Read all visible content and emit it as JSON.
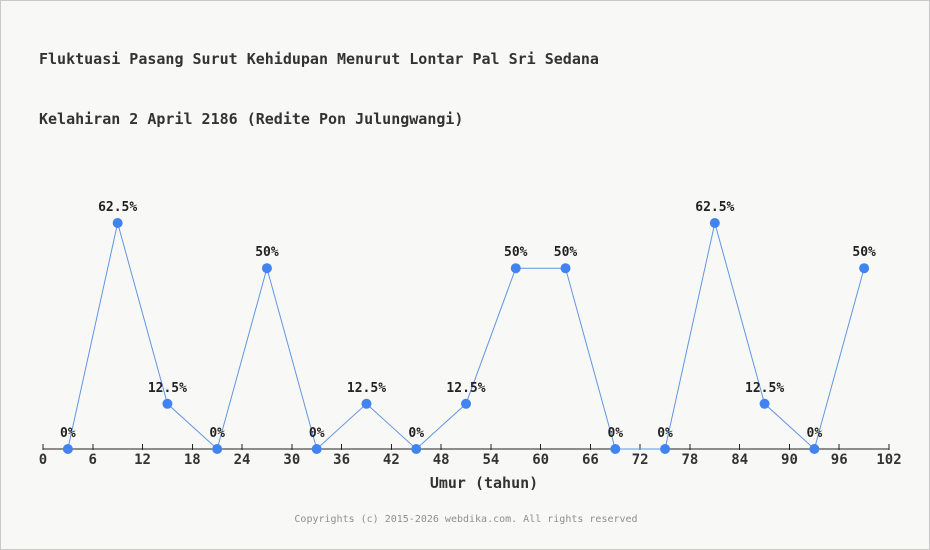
{
  "title": {
    "line1": "Fluktuasi Pasang Surut Kehidupan Menurut Lontar Pal Sri Sedana",
    "line2": "Kelahiran 2 April 2186 (Redite Pon Julungwangi)"
  },
  "footer": "Copyrights (c) 2015-2026 webdika.com. All rights reserved",
  "chart_data": {
    "type": "line",
    "title": "Fluktuasi Pasang Surut Kehidupan Menurut Lontar Pal Sri Sedana Kelahiran 2 April 2186 (Redite Pon Julungwangi)",
    "xlabel": "Umur (tahun)",
    "ylabel": "",
    "x": [
      3,
      9,
      15,
      21,
      27,
      33,
      39,
      45,
      51,
      57,
      63,
      69,
      75,
      81,
      87,
      93,
      99
    ],
    "values": [
      0,
      62.5,
      12.5,
      0,
      50,
      0,
      12.5,
      0,
      12.5,
      50,
      50,
      0,
      0,
      62.5,
      12.5,
      0,
      50
    ],
    "point_labels": [
      "0%",
      "62.5%",
      "12.5%",
      "0%",
      "50%",
      "0%",
      "12.5%",
      "0%",
      "12.5%",
      "50%",
      "50%",
      "0%",
      "0%",
      "62.5%",
      "12.5%",
      "0%",
      "50%"
    ],
    "x_ticks": [
      0,
      6,
      12,
      18,
      24,
      30,
      36,
      42,
      48,
      54,
      60,
      66,
      72,
      78,
      84,
      90,
      96,
      102
    ],
    "xlim": [
      0,
      102
    ],
    "ylim": [
      0,
      100
    ],
    "grid": false,
    "legend": false,
    "colors": {
      "line": "#6296e0",
      "marker": "#4184f0",
      "axis": "#222222",
      "tick_label": "#333333",
      "point_label": "#222222"
    }
  }
}
